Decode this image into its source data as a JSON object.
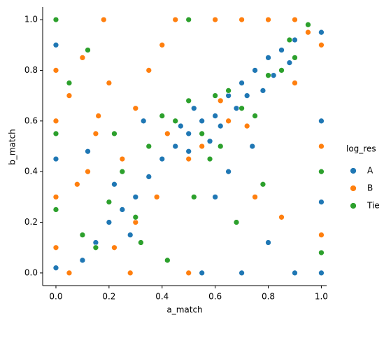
{
  "chart_data": {
    "type": "scatter",
    "x_label": "a_match",
    "y_label": "b_match",
    "legend_title": "log_res",
    "legend": "right",
    "xlim": [
      -0.05,
      1.02
    ],
    "ylim": [
      -0.05,
      1.05
    ],
    "xticks": [
      {
        "value": 0,
        "label": "0.0"
      },
      0.2,
      0.4,
      0.6,
      0.8,
      {
        "value": 1,
        "label": "1.0"
      }
    ],
    "yticks": [
      {
        "value": 0,
        "label": "0.0"
      },
      0.2,
      0.4,
      0.6,
      0.8,
      {
        "value": 1,
        "label": "1.0"
      }
    ],
    "series": [
      {
        "name": "A",
        "color": "#1f77b4",
        "x": [
          0.0,
          0.0,
          0.0,
          1.0,
          1.0,
          1.0,
          1.0,
          0.5,
          0.55,
          0.6,
          0.65,
          0.7,
          0.75,
          0.8,
          0.85,
          0.9,
          0.45,
          0.5,
          0.58,
          0.62,
          0.68,
          0.72,
          0.78,
          0.82,
          0.88,
          0.2,
          0.25,
          0.3,
          0.15,
          0.35,
          0.1,
          0.22,
          0.4,
          0.28,
          0.55,
          0.7,
          0.9,
          0.6,
          0.8,
          0.52,
          0.47,
          0.65,
          0.74,
          0.33,
          0.12
        ],
        "values": [
          0.9,
          0.45,
          0.02,
          0.95,
          0.6,
          0.28,
          0.0,
          0.55,
          0.6,
          0.62,
          0.7,
          0.75,
          0.8,
          0.85,
          0.88,
          0.92,
          0.5,
          0.48,
          0.52,
          0.58,
          0.65,
          0.7,
          0.72,
          0.78,
          0.83,
          0.2,
          0.25,
          0.3,
          0.12,
          0.38,
          0.05,
          0.35,
          0.45,
          0.15,
          0.0,
          0.0,
          0.0,
          0.3,
          0.12,
          0.65,
          0.58,
          0.4,
          0.5,
          0.6,
          0.48
        ]
      },
      {
        "name": "B",
        "color": "#ff7f0e",
        "x": [
          0.0,
          0.0,
          0.0,
          0.0,
          0.1,
          0.2,
          0.3,
          0.15,
          0.25,
          0.05,
          0.35,
          0.4,
          0.45,
          0.18,
          0.12,
          0.6,
          0.7,
          0.8,
          0.9,
          1.0,
          1.0,
          1.0,
          0.5,
          0.55,
          0.65,
          0.75,
          0.85,
          0.95,
          0.3,
          0.22,
          0.08,
          0.42,
          0.38,
          0.5,
          0.62,
          0.72,
          0.28,
          0.05,
          0.16,
          0.9
        ],
        "values": [
          0.8,
          0.6,
          0.3,
          0.1,
          0.85,
          0.75,
          0.65,
          0.55,
          0.45,
          0.7,
          0.8,
          0.9,
          1.0,
          1.0,
          0.4,
          1.0,
          1.0,
          1.0,
          1.0,
          0.9,
          0.5,
          0.15,
          0.45,
          0.5,
          0.6,
          0.3,
          0.22,
          0.95,
          0.2,
          0.1,
          0.35,
          0.55,
          0.3,
          0.0,
          0.68,
          0.58,
          0.0,
          0.0,
          0.62,
          0.75
        ]
      },
      {
        "name": "Tie",
        "color": "#2ca02c",
        "x": [
          0.0,
          0.0,
          0.0,
          1.0,
          1.0,
          0.05,
          0.1,
          0.2,
          0.3,
          0.4,
          0.5,
          0.6,
          0.7,
          0.8,
          0.9,
          0.45,
          0.55,
          0.65,
          0.75,
          0.85,
          0.35,
          0.25,
          0.15,
          0.52,
          0.58,
          0.68,
          0.78,
          0.88,
          0.42,
          0.32,
          0.5,
          0.62,
          0.95,
          0.22,
          0.12
        ],
        "values": [
          1.0,
          0.55,
          0.25,
          0.08,
          0.4,
          0.75,
          0.15,
          0.28,
          0.22,
          0.62,
          0.68,
          0.7,
          0.65,
          0.78,
          0.85,
          0.6,
          0.55,
          0.72,
          0.62,
          0.8,
          0.5,
          0.4,
          0.1,
          0.3,
          0.45,
          0.2,
          0.35,
          0.92,
          0.05,
          0.12,
          1.0,
          0.5,
          0.98,
          0.55,
          0.88
        ]
      }
    ]
  }
}
